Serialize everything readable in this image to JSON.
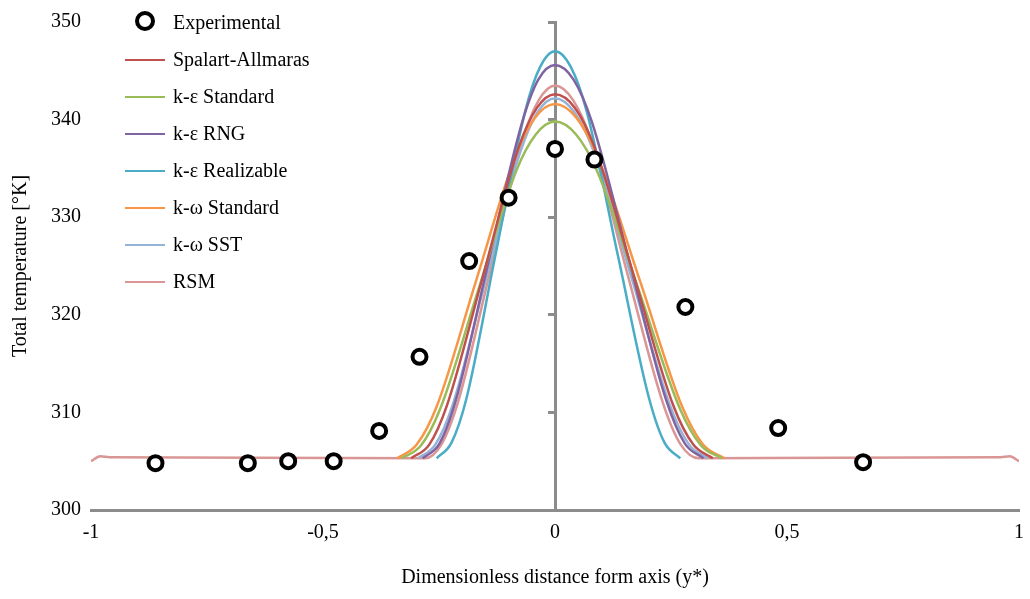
{
  "chart_data": {
    "type": "line",
    "xlabel": "Dimensionless distance form axis (y*)",
    "ylabel": "Total temperature [°K]",
    "xlim": [
      -1,
      1
    ],
    "xticks": [
      {
        "value": -1,
        "label": "-1"
      },
      {
        "value": -0.5,
        "label": "-0,5"
      },
      0,
      {
        "value": 0.5,
        "label": "0,5"
      },
      1
    ],
    "ylim": [
      300,
      350
    ],
    "yticks": [
      300,
      310,
      320,
      330,
      340,
      350
    ],
    "legend": "top left",
    "marker": "none",
    "series": [
      {
        "name": "Experimental",
        "type": "scatter",
        "marker": "circle",
        "color": "#000000",
        "x": [
          -0.861,
          -0.662,
          -0.575,
          -0.477,
          -0.379,
          -0.292,
          -0.185,
          -0.1,
          0,
          0.085,
          0.281,
          0.481,
          0.664
        ],
        "values": [
          304.8,
          304.8,
          305.0,
          305.0,
          308.1,
          315.7,
          325.5,
          332.0,
          337.0,
          335.9,
          320.8,
          308.4,
          304.9
        ]
      },
      {
        "name": "Spalart-Allmaras",
        "color": "#c0504d",
        "x": [
          -0.31,
          -0.271,
          -0.233,
          -0.155,
          -0.078,
          -0.039,
          0,
          0.043,
          0.085,
          0.17,
          0.255,
          0.298,
          0.34
        ],
        "values": [
          305.3,
          306.7,
          310.7,
          324.0,
          337.2,
          341.2,
          342.6,
          341.2,
          337.2,
          324.0,
          310.7,
          306.7,
          305.3
        ]
      },
      {
        "name": "k-ε Standard",
        "color": "#9bbb59",
        "x": [
          -0.33,
          -0.289,
          -0.248,
          -0.165,
          -0.083,
          -0.041,
          0,
          0.045,
          0.09,
          0.18,
          0.27,
          0.315,
          0.36
        ],
        "values": [
          305.3,
          306.6,
          310.3,
          322.6,
          334.8,
          338.5,
          339.8,
          338.5,
          334.8,
          322.6,
          310.3,
          306.6,
          305.3
        ]
      },
      {
        "name": "k-ε RNG",
        "color": "#8064a2",
        "x": [
          -0.285,
          -0.249,
          -0.214,
          -0.143,
          -0.071,
          -0.036,
          0,
          0.04,
          0.08,
          0.16,
          0.24,
          0.28,
          0.32
        ],
        "values": [
          305.3,
          306.8,
          311.2,
          325.5,
          339.7,
          344.1,
          345.6,
          344.1,
          339.7,
          325.5,
          311.2,
          306.8,
          305.3
        ]
      },
      {
        "name": "k-ε Realizable",
        "color": "#4bacc6",
        "x": [
          -0.255,
          -0.223,
          -0.191,
          -0.128,
          -0.064,
          -0.032,
          0,
          0.034,
          0.068,
          0.135,
          0.203,
          0.236,
          0.27
        ],
        "values": [
          305.3,
          306.9,
          311.4,
          326.2,
          340.9,
          345.4,
          347.0,
          345.4,
          340.9,
          326.2,
          311.4,
          306.9,
          305.3
        ]
      },
      {
        "name": "k-ω Standard",
        "color": "#f79646",
        "x": [
          -0.34,
          -0.298,
          -0.255,
          -0.17,
          -0.085,
          -0.043,
          0,
          0.046,
          0.091,
          0.183,
          0.274,
          0.319,
          0.365
        ],
        "values": [
          305.3,
          306.7,
          310.6,
          323.5,
          336.3,
          340.2,
          341.6,
          340.2,
          336.3,
          323.5,
          310.6,
          306.7,
          305.3
        ]
      },
      {
        "name": "k-ω SST",
        "color": "#95b3d7",
        "x": [
          -0.295,
          -0.258,
          -0.221,
          -0.148,
          -0.074,
          -0.037,
          0,
          0.041,
          0.083,
          0.165,
          0.248,
          0.289,
          0.33
        ],
        "values": [
          305.3,
          306.7,
          310.7,
          323.8,
          336.8,
          340.8,
          342.2,
          340.8,
          336.8,
          323.8,
          310.7,
          306.7,
          305.3
        ]
      },
      {
        "name": "RSM",
        "color": "#d99694",
        "x": [
          -1,
          -0.98,
          -0.96,
          -0.28,
          -0.245,
          -0.21,
          -0.14,
          -0.07,
          -0.035,
          0,
          0.039,
          0.078,
          0.155,
          0.233,
          0.271,
          0.31,
          0.96,
          0.98,
          1
        ],
        "values": [
          305.0,
          305.5,
          305.4,
          305.3,
          306.7,
          310.9,
          324.4,
          337.9,
          342.0,
          343.5,
          342.0,
          337.9,
          324.4,
          310.9,
          306.7,
          305.3,
          305.4,
          305.5,
          305.0
        ]
      }
    ]
  }
}
